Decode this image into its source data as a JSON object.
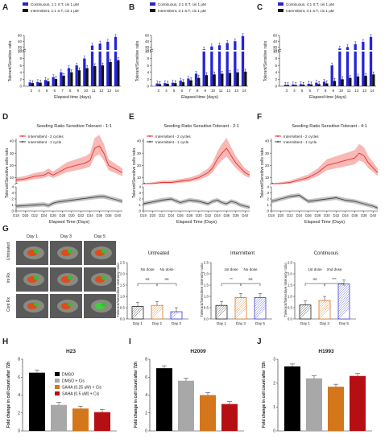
{
  "colors": {
    "continuous": "#2424d8",
    "intermittent": "#111111",
    "int2": "#e8332e",
    "int1": "#444444",
    "dmso": "#000000",
    "dmsocis": "#a8a8a8",
    "saha025": "#d4761c",
    "saha05": "#b50f14",
    "untreated_bar": "#f5e6c8"
  },
  "panels": {
    "A": "A",
    "B": "B",
    "C": "C",
    "D": "D",
    "E": "E",
    "F": "F",
    "G": "G",
    "H": "H",
    "I": "I",
    "J": "J"
  },
  "chart_data": [
    {
      "id": "A",
      "type": "bar",
      "ylabel": "Tolerant/Sensitive ratio",
      "xlabel": "Elapsed time (days)",
      "categories": [
        "3",
        "4",
        "5",
        "6",
        "7",
        "8",
        "9",
        "10",
        "11",
        "12",
        "13",
        "14"
      ],
      "yticks_lower": [
        "0",
        "2",
        "4",
        "6",
        "8",
        "10"
      ],
      "yticks_upper": [
        "10",
        "20",
        "40",
        "60"
      ],
      "series": [
        {
          "name": "Continuous, 1:1 S:T, cis 1 μM",
          "values": [
            1.1,
            1.2,
            1.8,
            2.6,
            4.0,
            5.2,
            6.0,
            8.0,
            25,
            32,
            38,
            55
          ]
        },
        {
          "name": "Intermittent, 1:1 S:T, cis 1 μM",
          "values": [
            0.9,
            1.0,
            1.4,
            2.1,
            3.0,
            4.0,
            4.6,
            5.2,
            5.8,
            6.0,
            7.0,
            7.5
          ]
        }
      ]
    },
    {
      "id": "B",
      "type": "bar",
      "ylabel": "Tolerant/Sensitive ratio",
      "xlabel": "Elapsed time (days)",
      "categories": [
        "3",
        "4",
        "5",
        "6",
        "7",
        "8",
        "9",
        "10",
        "11",
        "12",
        "13",
        "14"
      ],
      "yticks_lower": [
        "0",
        "2",
        "4",
        "6",
        "8",
        "10"
      ],
      "yticks_upper": [
        "10",
        "20",
        "40",
        "60"
      ],
      "series": [
        {
          "name": "Continuous, 2:1 S:T, cis 1 μM",
          "values": [
            0.8,
            0.9,
            1.0,
            1.6,
            2.2,
            3.6,
            12,
            22,
            26,
            34,
            40,
            58
          ]
        },
        {
          "name": "Intermittent, 2:1 S:T, cis 1 μM",
          "values": [
            0.6,
            0.7,
            0.9,
            1.2,
            1.7,
            2.4,
            3.2,
            3.4,
            3.6,
            3.8,
            4.0,
            4.2
          ]
        }
      ]
    },
    {
      "id": "C",
      "type": "bar",
      "ylabel": "Tolerant/Sensitive ratio",
      "xlabel": "Elapsed time (days)",
      "categories": [
        "3",
        "4",
        "5",
        "6",
        "7",
        "8",
        "9",
        "10",
        "11",
        "12",
        "13",
        "14"
      ],
      "yticks_lower": [
        "0",
        "2",
        "4",
        "6",
        "8",
        "10"
      ],
      "yticks_upper": [
        "10",
        "20",
        "40",
        "60"
      ],
      "series": [
        {
          "name": "Continuous, 4:1 S:T, cis 1 μM",
          "values": [
            0.4,
            0.5,
            0.6,
            0.7,
            1.0,
            1.3,
            6.0,
            15,
            20,
            30,
            38,
            55
          ]
        },
        {
          "name": "Intermittent, 4:1 S:T, cis 1 μM",
          "values": [
            0.3,
            0.3,
            0.4,
            0.5,
            0.6,
            0.8,
            1.5,
            2.0,
            2.4,
            2.8,
            3.0,
            3.4
          ]
        }
      ]
    },
    {
      "id": "D",
      "type": "line",
      "title": "Seeding Ratio Sensitive:Tolerant - 1:1",
      "ylabel": "Tolerant/Sensitive cells ratio",
      "xlabel": "Elapsed Time  (Days)",
      "xticks": [
        "D18",
        "D20",
        "D22",
        "D24",
        "D26",
        "D28",
        "D30",
        "D32",
        "D34",
        "D36",
        "D38",
        "D40"
      ],
      "yticks_upper": [
        "10",
        "20",
        "30",
        "40"
      ],
      "yticks_lower": [
        "0",
        "1",
        "2",
        "3",
        "4"
      ],
      "series": [
        {
          "name": "Intermittent - 2 cycles",
          "x": [
            18,
            20,
            22,
            24,
            25,
            26,
            27,
            28,
            29,
            30,
            31,
            32,
            33,
            34,
            35,
            36,
            37,
            38,
            39,
            40,
            41
          ],
          "values": [
            8,
            9,
            11,
            12,
            14,
            12,
            14,
            16,
            18,
            19,
            20,
            21,
            22,
            24,
            34,
            36,
            30,
            20,
            18,
            16,
            14
          ]
        },
        {
          "name": "Intermittent - 1 cycle",
          "x": [
            18,
            20,
            22,
            24,
            25,
            26,
            27,
            28,
            29,
            30,
            31,
            32,
            33,
            34,
            35,
            36,
            37,
            38,
            39,
            40,
            41
          ],
          "values": [
            0.8,
            0.9,
            1.0,
            1.1,
            0.9,
            1.3,
            1.5,
            1.6,
            1.7,
            1.8,
            1.9,
            2.0,
            2.1,
            2.2,
            2.3,
            2.4,
            2.4,
            2.2,
            2.0,
            1.8,
            1.6
          ]
        }
      ]
    },
    {
      "id": "E",
      "type": "line",
      "title": "Seeding Ratio Sensitive:Tolerant - 2:1",
      "ylabel": "Tolerant/Sensitive cells ratio",
      "xlabel": "Elapsed Time  (Days)",
      "xticks": [
        "D18",
        "D20",
        "D22",
        "D24",
        "D26",
        "D28",
        "D30",
        "D32",
        "D34",
        "D36",
        "D38",
        "D40"
      ],
      "yticks_upper": [
        "10",
        "20",
        "30",
        "40"
      ],
      "yticks_lower": [
        "0",
        "1",
        "2",
        "3",
        "4"
      ],
      "series": [
        {
          "name": "Intermittent - 2 cycles",
          "x": [
            18,
            20,
            22,
            24,
            26,
            28,
            30,
            32,
            33,
            34,
            35,
            36,
            37,
            38,
            39,
            40,
            41
          ],
          "values": [
            4,
            5,
            6,
            6,
            7,
            8,
            10,
            14,
            18,
            25,
            30,
            34,
            28,
            22,
            18,
            14,
            12
          ]
        },
        {
          "name": "Intermittent - 1 cycle",
          "x": [
            18,
            20,
            22,
            24,
            26,
            28,
            30,
            32,
            33,
            34,
            35,
            36,
            37,
            38,
            39,
            40,
            41
          ],
          "values": [
            1.2,
            1.5,
            1.8,
            2.0,
            1.4,
            1.8,
            1.6,
            1.2,
            1.6,
            1.8,
            1.4,
            1.2,
            1.6,
            1.4,
            1.0,
            0.8,
            0.6
          ]
        }
      ]
    },
    {
      "id": "F",
      "type": "line",
      "title": "Seeding Ratio Sensitive:Tolerant - 4:1",
      "ylabel": "Tolerant/Sensitive cells ratio",
      "xlabel": "Elapsed Time  (Days)",
      "xticks": [
        "D18",
        "D20",
        "D22",
        "D24",
        "D26",
        "D28",
        "D30",
        "D32",
        "D34",
        "D36",
        "D38",
        "D40"
      ],
      "yticks_upper": [
        "10",
        "20",
        "30",
        "40"
      ],
      "yticks_lower": [
        "0",
        "1",
        "2",
        "3",
        "4"
      ],
      "series": [
        {
          "name": "Intermittent - 2 cycles",
          "x": [
            18,
            20,
            22,
            24,
            26,
            28,
            30,
            32,
            34,
            36,
            37,
            38,
            39,
            40,
            41
          ],
          "values": [
            4,
            5,
            6,
            8,
            10,
            14,
            20,
            22,
            24,
            26,
            30,
            28,
            22,
            18,
            14
          ]
        },
        {
          "name": "Intermittent - 1 cycle",
          "x": [
            18,
            20,
            22,
            24,
            26,
            28,
            30,
            32,
            34,
            36,
            37,
            38,
            39,
            40,
            41
          ],
          "values": [
            1.6,
            2.0,
            2.4,
            2.6,
            1.6,
            1.8,
            2.0,
            2.2,
            1.8,
            1.6,
            1.4,
            1.2,
            1.0,
            0.8,
            0.5
          ]
        }
      ]
    },
    {
      "id": "G1",
      "type": "bar",
      "title": "Untreated",
      "ylabel": "Tolerant/Sensitive intensity ratio",
      "categories": [
        "Day 1",
        "Day 2",
        "Day 3"
      ],
      "values": [
        0.55,
        0.6,
        0.32
      ],
      "ylim": [
        0,
        2.5
      ],
      "yticks": [
        "0.0",
        "0.5",
        "1.0",
        "1.5",
        "2.0",
        "2.5"
      ],
      "annotations": [
        {
          "text": "No dose",
          "sig": "ns",
          "span": "Day 1–Day 2"
        },
        {
          "text": "No dose",
          "sig": "ns",
          "span": "Day 2–Day 3"
        }
      ]
    },
    {
      "id": "G2",
      "type": "bar",
      "title": "Intermittent",
      "ylabel": "Tolerant/Sensitive intensity ratio",
      "categories": [
        "Day 1",
        "Day 3",
        "Day 5"
      ],
      "values": [
        0.6,
        0.95,
        0.95
      ],
      "ylim": [
        0,
        2.5
      ],
      "yticks": [
        "0.0",
        "0.5",
        "1.0",
        "1.5",
        "2.0",
        "2.5"
      ],
      "annotations": [
        {
          "text": "1st dose",
          "sig": "**",
          "span": "Day 1–Day 3"
        },
        {
          "text": "No dose",
          "sig": "ns",
          "span": "Day 3–Day 5"
        }
      ]
    },
    {
      "id": "G3",
      "type": "bar",
      "title": "Continuous",
      "ylabel": "Tolerant/Sensitive intensity ratio",
      "categories": [
        "Day 1",
        "Day 3",
        "Day 5"
      ],
      "values": [
        0.62,
        0.82,
        1.55
      ],
      "ylim": [
        0,
        2.5
      ],
      "yticks": [
        "0.0",
        "0.5",
        "1.0",
        "1.5",
        "2.0",
        "2.5"
      ],
      "annotations": [
        {
          "text": "1st dose",
          "sig": "ns",
          "span": "Day 1–Day 3"
        },
        {
          "text": "2nd dose",
          "sig": "***",
          "span": "Day 3–Day 5"
        }
      ]
    },
    {
      "id": "H",
      "type": "bar",
      "title": "H23",
      "ylabel": "Fold change in cell count after 72h",
      "categories": [
        "DMSO",
        "DMSO + Cis",
        "SAHA (0.25 uM) + Cis",
        "SAHA (0.5 uM) + Cis"
      ],
      "values": [
        6.5,
        2.9,
        2.5,
        2.1
      ],
      "ylim": [
        0,
        8
      ],
      "yticks": [
        "0",
        "2",
        "4",
        "6",
        "8"
      ]
    },
    {
      "id": "I",
      "type": "bar",
      "title": "H2009",
      "ylabel": "Fold change in cell count after 72h",
      "categories": [
        "DMSO",
        "DMSO + Cis",
        "SAHA (0.25 uM) + Cis",
        "SAHA (0.5 uM) + Cis"
      ],
      "values": [
        7.0,
        5.6,
        4.0,
        3.0
      ],
      "ylim": [
        0,
        8
      ],
      "yticks": [
        "0",
        "2",
        "4",
        "6",
        "8"
      ]
    },
    {
      "id": "J",
      "type": "bar",
      "title": "H1993",
      "ylabel": "Fold change in cell count after 72h",
      "categories": [
        "DMSO",
        "DMSO + Cis",
        "SAHA (0.25 uM) + Cis",
        "SAHA (0.5 uM) + Cis"
      ],
      "values": [
        2.7,
        2.2,
        1.85,
        2.3
      ],
      "ylim": [
        0,
        3
      ],
      "yticks": [
        "0",
        "1",
        "2",
        "3"
      ]
    }
  ],
  "micro": {
    "col_labels": [
      "Day 1",
      "Day 3",
      "Day 5"
    ],
    "row_labels": [
      "Untreated",
      "Int Rx",
      "Cont Rx"
    ]
  }
}
